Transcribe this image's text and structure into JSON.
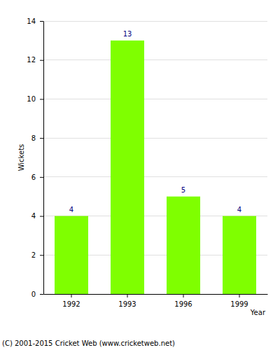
{
  "chart_data": {
    "type": "bar",
    "categories": [
      "1992",
      "1993",
      "1996",
      "1999"
    ],
    "values": [
      4,
      13,
      5,
      4
    ],
    "color": "#7fff00",
    "xlabel": "Year",
    "ylabel": "Wickets",
    "ylim": [
      0,
      14
    ],
    "yticks": [
      0,
      2,
      4,
      6,
      8,
      10,
      12,
      14
    ],
    "grid": true,
    "data_labels": true,
    "annotations": [
      "(C) 2001-2015 Cricket Web (www.cricketweb.net)"
    ]
  }
}
